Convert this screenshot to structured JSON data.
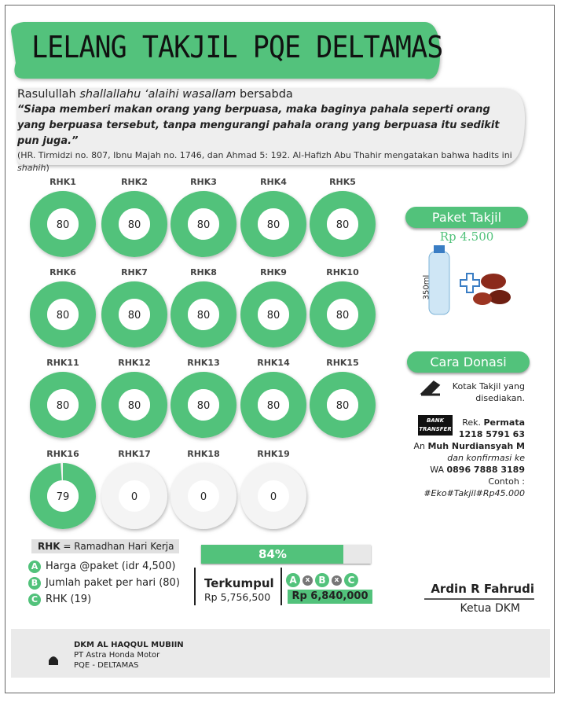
{
  "header": {
    "title": "LELANG TAKJIL PQE DELTAMAS"
  },
  "quote": {
    "intro_prefix": "Rasulullah ",
    "intro_italic": "shallallahu ‘alaihi wasallam",
    "intro_suffix": " bersabda",
    "text": "“Siapa memberi makan orang yang berpuasa, maka baginya pahala seperti orang yang berpuasa tersebut, tanpa mengurangi pahala orang yang berpuasa itu sedikit pun juga.”",
    "source_prefix": "(HR. Tirmidzi no. 807, Ibnu Majah no. 1746, dan Ahmad 5: 192. Al-Hafizh Abu Thahir mengatakan bahwa hadits ini ",
    "source_italic": "shahih",
    "source_suffix": ")"
  },
  "days": [
    {
      "label": "RHK1",
      "value": 80
    },
    {
      "label": "RHK2",
      "value": 80
    },
    {
      "label": "RHK3",
      "value": 80
    },
    {
      "label": "RHK4",
      "value": 80
    },
    {
      "label": "RHK5",
      "value": 80
    },
    {
      "label": "RHK6",
      "value": 80
    },
    {
      "label": "RHK7",
      "value": 80
    },
    {
      "label": "RHK8",
      "value": 80
    },
    {
      "label": "RHK9",
      "value": 80
    },
    {
      "label": "RHK10",
      "value": 80
    },
    {
      "label": "RHK11",
      "value": 80
    },
    {
      "label": "RHK12",
      "value": 80
    },
    {
      "label": "RHK13",
      "value": 80
    },
    {
      "label": "RHK14",
      "value": 80
    },
    {
      "label": "RHK15",
      "value": 80
    },
    {
      "label": "RHK16",
      "value": 79
    },
    {
      "label": "RHK17",
      "value": 0
    },
    {
      "label": "RHK18",
      "value": 0
    },
    {
      "label": "RHK19",
      "value": 0
    }
  ],
  "rhk_note": {
    "abbr": "RHK",
    "text": " = Ramadhan Hari Kerja"
  },
  "factors": [
    {
      "letter": "A",
      "text": "Harga @paket (idr 4,500)"
    },
    {
      "letter": "B",
      "text": "Jumlah paket per hari (80)"
    },
    {
      "letter": "C",
      "text": "RHK (19)"
    }
  ],
  "progress": {
    "value": 84,
    "label": "84%"
  },
  "collected": {
    "label": "Terkumpul",
    "amount": "Rp 5,756,500"
  },
  "formula": {
    "letters": [
      "A",
      "B",
      "C"
    ],
    "operator": "x",
    "target": "Rp 6,840,000"
  },
  "package": {
    "title": "Paket Takjil",
    "price": "Rp 4.500",
    "bottle_label": "350ml"
  },
  "donation": {
    "title": "Cara Donasi",
    "box_text": [
      "Kotak Takjil yang",
      "disediakan."
    ],
    "bank_icon": [
      "BANK",
      "TRANSFER"
    ],
    "lines": [
      [
        {
          "t": "Rek. "
        },
        {
          "t": "Permata",
          "b": true
        }
      ],
      [
        {
          "t": "1218 5791 63",
          "b": true
        }
      ],
      [
        {
          "t": "An "
        },
        {
          "t": "Muh Nurdiansyah M",
          "b": true
        }
      ],
      [
        {
          "t": "dan konfirmasi ke",
          "i": true
        }
      ],
      [
        {
          "t": "WA "
        },
        {
          "t": "0896 7888 3189",
          "b": true
        }
      ],
      [
        {
          "t": "Contoh :"
        }
      ],
      [
        {
          "t": "#Eko#Takjil#Rp45.000",
          "i": true
        }
      ]
    ]
  },
  "signature": {
    "name": "Ardin R Fahrudi",
    "role": "Ketua DKM"
  },
  "footer": {
    "org": "DKM AL HAQQUL MUBIIN",
    "company": "PT Astra Honda Motor",
    "site": "PQE - DELTAMAS"
  }
}
